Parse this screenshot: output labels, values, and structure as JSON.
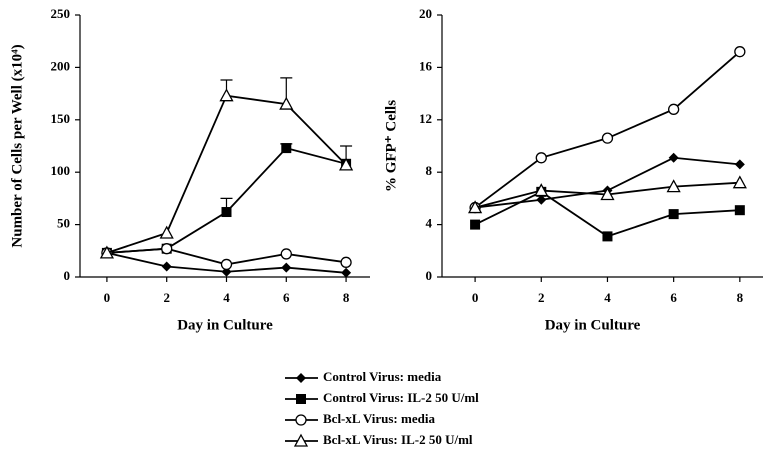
{
  "chart_data": [
    {
      "type": "line",
      "ylabel": "Number of Cells per Well (x10⁴)",
      "xlabel": "Day in Culture",
      "x": [
        0,
        2,
        4,
        6,
        8
      ],
      "xlim": [
        -0.9,
        8.8
      ],
      "xticks": [
        0,
        2,
        4,
        6,
        8
      ],
      "ylim": [
        0,
        250
      ],
      "yticks": [
        0,
        50,
        100,
        150,
        200,
        250
      ],
      "series": [
        {
          "name": "Control Virus: media",
          "color": "#000000",
          "marker": "diamond",
          "values": [
            23,
            10,
            5,
            9,
            4
          ]
        },
        {
          "name": "Control Virus: IL-2 50 U/ml",
          "color": "#000000",
          "marker": "square",
          "values": [
            23,
            27,
            62,
            123,
            108
          ],
          "errors": [
            null,
            null,
            13,
            4,
            null
          ]
        },
        {
          "name": "Bcl-xL Virus: media",
          "color": "#000000",
          "marker": "circle",
          "values": [
            23,
            27,
            12,
            22,
            14
          ]
        },
        {
          "name": "Bcl-xL Virus: IL-2 50 U/ml",
          "color": "#000000",
          "marker": "triangle",
          "values": [
            23,
            42,
            173,
            165,
            107
          ],
          "errors": [
            null,
            null,
            15,
            25,
            18
          ]
        }
      ]
    },
    {
      "type": "line",
      "ylabel": "% GFP⁺ Cells",
      "xlabel": "Day in Culture",
      "x": [
        0,
        2,
        4,
        6,
        8
      ],
      "xlim": [
        -1,
        8.7
      ],
      "xticks": [
        0,
        2,
        4,
        6,
        8
      ],
      "ylim": [
        0,
        20
      ],
      "yticks": [
        0,
        4,
        8,
        12,
        16,
        20
      ],
      "series": [
        {
          "name": "Control Virus: media",
          "color": "#000000",
          "marker": "diamond",
          "values": [
            5.3,
            5.9,
            6.6,
            9.1,
            8.6
          ]
        },
        {
          "name": "Control Virus: IL-2 50 U/ml",
          "color": "#000000",
          "marker": "square",
          "values": [
            4,
            6.5,
            3.1,
            4.8,
            5.1
          ]
        },
        {
          "name": "Bcl-xL Virus: media",
          "color": "#000000",
          "marker": "circle",
          "values": [
            5.3,
            9.1,
            10.6,
            12.8,
            17.2
          ]
        },
        {
          "name": "Bcl-xL Virus: IL-2 50 U/ml",
          "color": "#000000",
          "marker": "triangle",
          "values": [
            5.3,
            6.6,
            6.3,
            6.9,
            7.2
          ]
        }
      ]
    }
  ]
}
